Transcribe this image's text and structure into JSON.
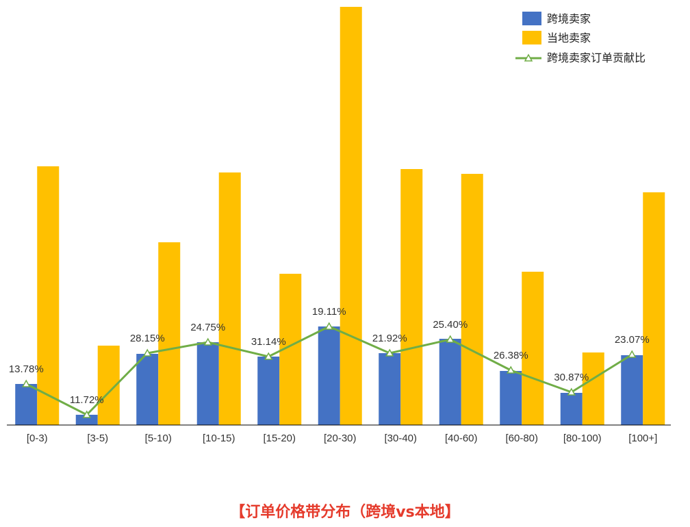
{
  "chart_data": {
    "type": "bar",
    "title": "【订单价格带分布（跨境vs本地】",
    "categories": [
      "[0-3)",
      "[3-5)",
      "[5-10)",
      "[10-15)",
      "[15-20)",
      "[20-30)",
      "[30-40)",
      "[40-60)",
      "[60-80)",
      "[80-100)",
      "[100+]"
    ],
    "series": [
      {
        "name": "跨境卖家",
        "values": [
          60,
          15,
          104,
          121,
          100,
          144,
          105,
          126,
          79,
          47,
          102
        ]
      },
      {
        "name": "当地卖家",
        "values": [
          378,
          116,
          267,
          369,
          221,
          611,
          374,
          367,
          224,
          106,
          340
        ]
      }
    ],
    "line_series": {
      "name": "跨境卖家订单贡献比",
      "values": [
        60,
        15,
        105,
        121,
        100,
        144,
        105,
        125,
        80,
        48,
        103
      ],
      "labels": [
        "13.78%",
        "11.72%",
        "28.15%",
        "24.75%",
        "31.14%",
        "19.11%",
        "21.92%",
        "25.40%",
        "26.38%",
        "30.87%",
        "23.07%"
      ]
    },
    "ylim": [
      0,
      611
    ],
    "grid": false,
    "legend_position": "top-right",
    "colors": {
      "cross_border": "#4472c4",
      "local": "#ffc000",
      "line": "#70ad47"
    }
  }
}
